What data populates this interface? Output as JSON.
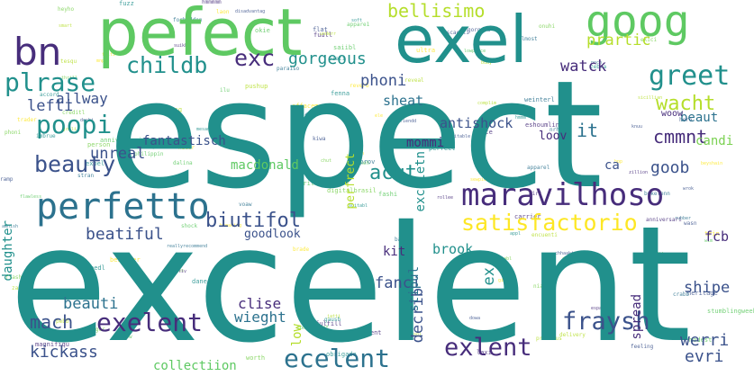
{
  "palette": {
    "teal": "#21908c",
    "green": "#5ec962",
    "yellowgreen": "#b5de2b",
    "yellow": "#fde725",
    "blue": "#3b528b",
    "purple": "#440154",
    "indigo": "#472d7b",
    "mid": "#2c728e",
    "lime": "#7ad151"
  },
  "words": {
    "espect": "espect",
    "excelent": "excelent",
    "pefect": "pefect",
    "exel": "exel",
    "goog": "goog",
    "bn": "bn",
    "maravilhoso": "maravilhoso",
    "perfetto": "perfetto",
    "satisfactorio": "satisfactorio",
    "plrase": "plrase",
    "poopi": "poopi",
    "beauty": "beauty",
    "greet": "greet",
    "wacht": "wacht",
    "childb": "childb",
    "exc": "exc",
    "gorgeous": "gorgeous",
    "bellisimo": "bellisimo",
    "lefti": "lefti",
    "phoni": "phoni",
    "watck": "watck",
    "it": "it",
    "cmmnt": "cmmnt",
    "goob": "goob",
    "beaut": "beaut",
    "candi": "candi",
    "woow": "woow",
    "allway": "allway",
    "sheat": "sheat",
    "antishock": "antishock",
    "unreal": "unreal",
    "fantastisch": "fantastisch",
    "mommi": "mommi",
    "ca": "ca",
    "acut": "acut",
    "macdonald": "macdonald",
    "biutifol": "biutifol",
    "beatiful": "beatiful",
    "goodlook": "goodlook",
    "fcb": "fcb",
    "brook": "brook",
    "kit": "kit",
    "shipe": "shipe",
    "fanci": "fanci",
    "beauti": "beauti",
    "clise": "clise",
    "wieght": "wieght",
    "mach": "mach",
    "exelent": "exelent",
    "ecelent": "ecelent",
    "exlent": "exlent",
    "fraysh": "fraysh",
    "werri": "werri",
    "evri": "evri",
    "kickass": "kickass",
    "collectiion": "collectiion",
    "daughter": "daughter",
    "perfrect": "perfrect",
    "exceletn": "exceletn",
    "decrib": "decrib",
    "impress": "imprss",
    "spread": "spread",
    "loov": "loov",
    "stipul": "stipul",
    "ex": "ex",
    "low": "low",
    "prartic": "prartic"
  },
  "tiny_words": [
    "suitabl",
    "dalina",
    "pebbl",
    "effacement",
    "gorgeou",
    "reallyrecommend",
    "refeurn",
    "magnifiqu",
    "expel",
    "philippin",
    "complim",
    "beyshain",
    "boyfriendd",
    "nrhon",
    "leaflet",
    "zillion",
    "perfect",
    "lowprice",
    "underr",
    "brade",
    "hero",
    "approv",
    "chut",
    "fractiv",
    "dane",
    "modest",
    "encuenti",
    "trader",
    "jooli",
    "weinterl",
    "phoni",
    "fuull",
    "gaush",
    "saiibl",
    "sicillian",
    "bestseer",
    "dowa",
    "noch",
    "heyho",
    "espandiv",
    "soft",
    "appare1",
    "bitsg",
    "mnp",
    "escactli",
    "stran",
    "flashtiu",
    "eshoumlin",
    "appl",
    "okie",
    "smart",
    "laon",
    "kiwa",
    "bnkelenn",
    "bouger",
    "prevent",
    "obrigado",
    "whrite",
    "delivery",
    "trin",
    "flat",
    "baz",
    "niadlic",
    "fulfill",
    "imbrue",
    "wim",
    "bday",
    "ele",
    "wrok",
    "paraiso",
    "stilles",
    "anniversari",
    "zebra",
    "compliment",
    "tesqu",
    "nicor",
    "disadvantag",
    "apparel",
    "ekici",
    "delo",
    "eedl",
    "flawless",
    "pushup",
    "reverb",
    "feeling",
    "crabb",
    "thrill",
    "carrier",
    "mesant",
    "emphow",
    "speechless",
    "ultra",
    "wasn",
    "voaw",
    "person",
    "dirt",
    "filler",
    "anniversari",
    "precious",
    "hpp",
    "knuu",
    "forbidden",
    "worth",
    "rollee",
    "pieti",
    "ilu",
    "reveal",
    "sewpiece",
    "ramp",
    "awnish",
    "creditl",
    "laxi",
    "fuzz",
    "stumblingweek",
    "awesol",
    "breaking",
    "suitable",
    "rubber",
    "confortabl",
    "suikb",
    "accord",
    "fashi",
    "jolli",
    "fulti",
    "doshi",
    "useful",
    "digitalbrasil",
    "cute",
    "fenna",
    "shock",
    "jatti",
    "poch",
    "chhaaki",
    "almost",
    "onuhi",
    "hmmmmm",
    "hmmm",
    "bokeh",
    "zaa",
    "gimm",
    "heritage",
    "neuv",
    "nolaw"
  ]
}
